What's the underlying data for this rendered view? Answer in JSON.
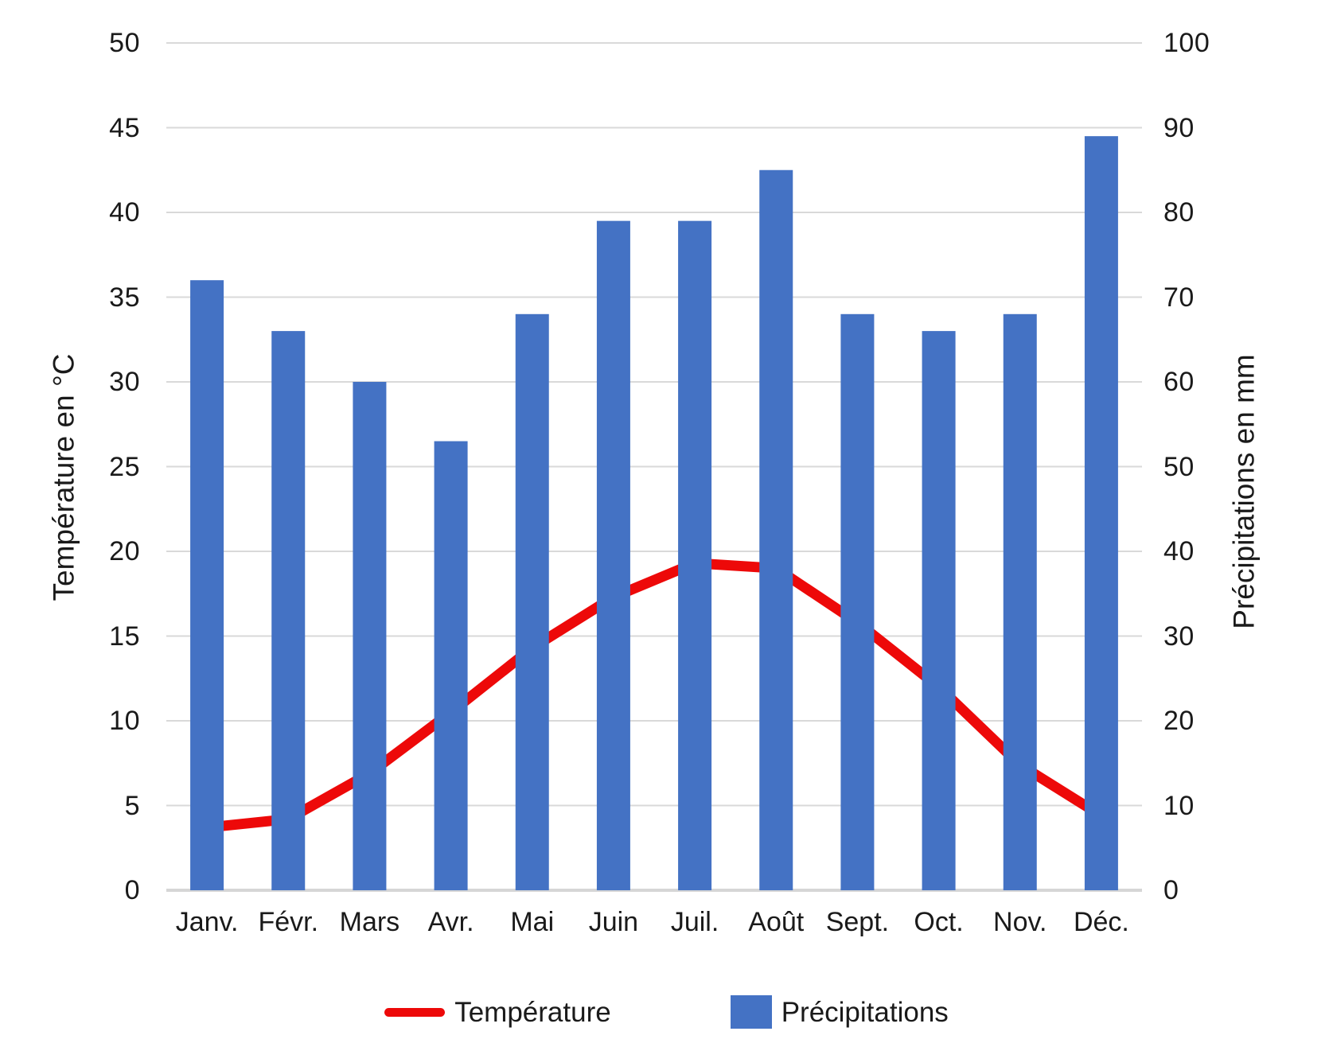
{
  "chart_data": {
    "type": "combo",
    "title": "",
    "categories": [
      "Janv.",
      "Févr.",
      "Mars",
      "Avr.",
      "Mai",
      "Juin",
      "Juil.",
      "Août",
      "Sept.",
      "Oct.",
      "Nov.",
      "Déc."
    ],
    "series": [
      {
        "name": "Température",
        "type": "line",
        "axis": "left",
        "unit": "°C",
        "color": "#ed0909",
        "values": [
          3.7,
          4.2,
          6.9,
          10.5,
          14.3,
          17.3,
          19.3,
          19,
          15.8,
          12,
          7.4,
          4.4
        ]
      },
      {
        "name": "Précipitations",
        "type": "bar",
        "axis": "right",
        "unit": "mm",
        "color": "#4472c4",
        "values": [
          72,
          66,
          60,
          53,
          68,
          79,
          79,
          85,
          68,
          66,
          68,
          89
        ]
      }
    ],
    "axes": {
      "left": {
        "label": "Température en °C",
        "min": 0,
        "max": 50,
        "step": 5,
        "ticks": [
          0,
          5,
          10,
          15,
          20,
          25,
          30,
          35,
          40,
          45,
          50
        ]
      },
      "right": {
        "label": "Précipitations en mm",
        "min": 0,
        "max": 100,
        "step": 10,
        "ticks": [
          0,
          10,
          20,
          30,
          40,
          50,
          60,
          70,
          80,
          90,
          100
        ]
      }
    },
    "grid": true,
    "legend_position": "bottom",
    "colors": {
      "gridline": "#d9d9d9",
      "baseline": "#d6d6d6",
      "text": "#1a1a1a",
      "background": "#ffffff"
    }
  }
}
